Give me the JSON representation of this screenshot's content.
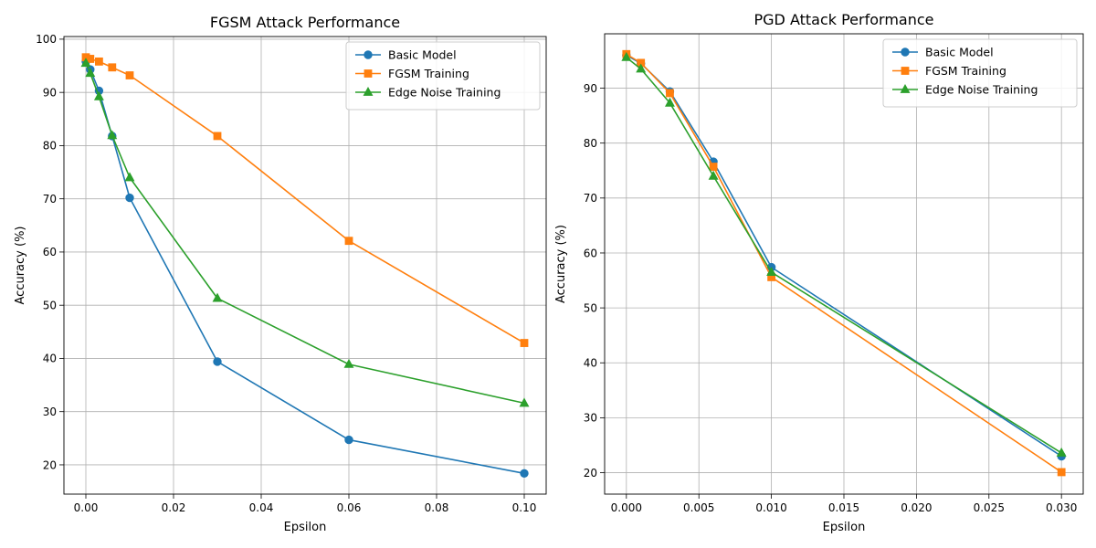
{
  "chart_data": [
    {
      "type": "line",
      "title": "FGSM Attack Performance",
      "xlabel": "Epsilon",
      "ylabel": "Accuracy (%)",
      "xlim": [
        -0.005,
        0.105
      ],
      "ylim": [
        14.5,
        100.5
      ],
      "xticks": [
        0.0,
        0.02,
        0.04,
        0.06,
        0.08,
        0.1
      ],
      "xtick_labels": [
        "0.00",
        "0.02",
        "0.04",
        "0.06",
        "0.08",
        "0.10"
      ],
      "yticks": [
        20,
        30,
        40,
        50,
        60,
        70,
        80,
        90,
        100
      ],
      "ytick_labels": [
        "20",
        "30",
        "40",
        "50",
        "60",
        "70",
        "80",
        "90",
        "100"
      ],
      "grid": true,
      "legend_position": "top-right",
      "x": [
        0.0,
        0.001,
        0.003,
        0.006,
        0.01,
        0.03,
        0.06,
        0.1
      ],
      "series": [
        {
          "name": "Basic Model",
          "color": "#1f77b4",
          "marker": "circle",
          "values": [
            95.8,
            94.3,
            90.3,
            81.8,
            70.2,
            39.4,
            24.7,
            18.4
          ]
        },
        {
          "name": "FGSM Training",
          "color": "#ff7f0e",
          "marker": "square",
          "values": [
            96.6,
            96.3,
            95.8,
            94.7,
            93.2,
            81.8,
            62.1,
            42.9
          ]
        },
        {
          "name": "Edge Noise Training",
          "color": "#2ca02c",
          "marker": "triangle",
          "values": [
            95.5,
            93.6,
            89.2,
            81.9,
            74.0,
            51.3,
            38.9,
            31.6
          ]
        }
      ]
    },
    {
      "type": "line",
      "title": "PGD Attack Performance",
      "xlabel": "Epsilon",
      "ylabel": "Accuracy (%)",
      "xlim": [
        -0.0015,
        0.0315
      ],
      "ylim": [
        16.1,
        99.9
      ],
      "xticks": [
        0.0,
        0.005,
        0.01,
        0.015,
        0.02,
        0.025,
        0.03
      ],
      "xtick_labels": [
        "0.000",
        "0.005",
        "0.010",
        "0.015",
        "0.020",
        "0.025",
        "0.030"
      ],
      "yticks": [
        20,
        30,
        40,
        50,
        60,
        70,
        80,
        90
      ],
      "ytick_labels": [
        "20",
        "30",
        "40",
        "50",
        "60",
        "70",
        "80",
        "90"
      ],
      "grid": true,
      "legend_position": "top-right",
      "x": [
        0.0,
        0.001,
        0.003,
        0.006,
        0.01,
        0.03
      ],
      "series": [
        {
          "name": "Basic Model",
          "color": "#1f77b4",
          "marker": "circle",
          "values": [
            96.0,
            94.5,
            89.4,
            76.6,
            57.4,
            23.0
          ]
        },
        {
          "name": "FGSM Training",
          "color": "#ff7f0e",
          "marker": "square",
          "values": [
            96.2,
            94.6,
            89.1,
            75.7,
            55.6,
            20.1
          ]
        },
        {
          "name": "Edge Noise Training",
          "color": "#2ca02c",
          "marker": "triangle",
          "values": [
            95.6,
            93.5,
            87.3,
            74.0,
            56.5,
            23.6
          ]
        }
      ]
    }
  ]
}
